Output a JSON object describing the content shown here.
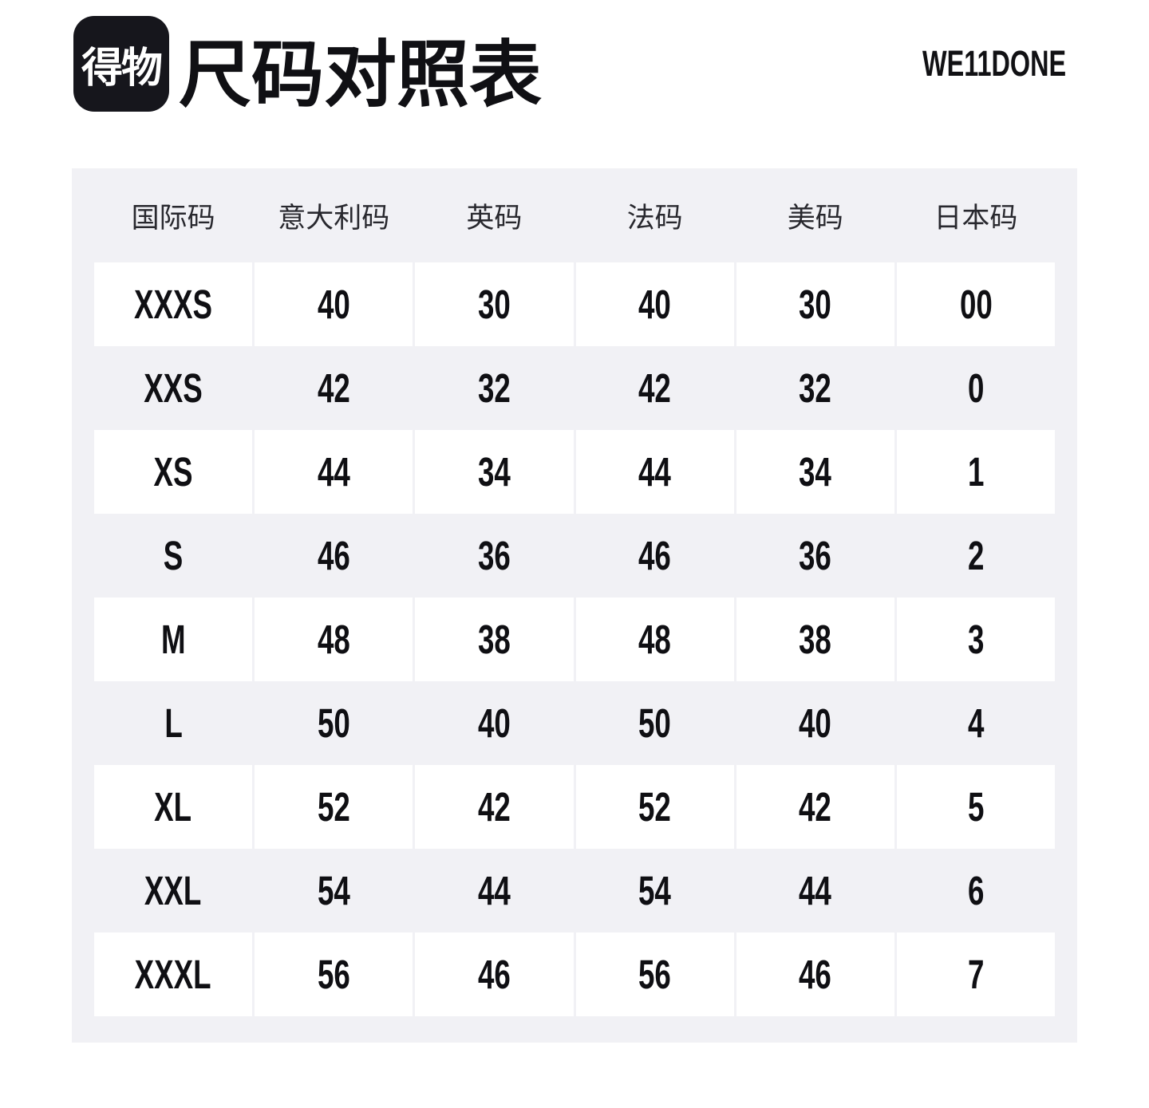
{
  "header": {
    "logo_text": "得物",
    "title": "尺码对照表",
    "brand": "WE11DONE"
  },
  "chart_data": {
    "type": "table",
    "title": "尺码对照表",
    "brand": "WE11DONE",
    "columns": [
      "国际码",
      "意大利码",
      "英码",
      "法码",
      "美码",
      "日本码"
    ],
    "rows": [
      [
        "XXXS",
        "40",
        "30",
        "40",
        "30",
        "00"
      ],
      [
        "XXS",
        "42",
        "32",
        "42",
        "32",
        "0"
      ],
      [
        "XS",
        "44",
        "34",
        "44",
        "34",
        "1"
      ],
      [
        "S",
        "46",
        "36",
        "46",
        "36",
        "2"
      ],
      [
        "M",
        "48",
        "38",
        "48",
        "38",
        "3"
      ],
      [
        "L",
        "50",
        "40",
        "50",
        "40",
        "4"
      ],
      [
        "XL",
        "52",
        "42",
        "52",
        "42",
        "5"
      ],
      [
        "XXL",
        "54",
        "44",
        "54",
        "44",
        "6"
      ],
      [
        "XXXL",
        "56",
        "46",
        "56",
        "46",
        "7"
      ]
    ]
  },
  "colors": {
    "panel_bg": "#f1f1f5",
    "cell_bg": "#ffffff",
    "value_text": "#0f0f13",
    "header_text": "#28282e",
    "logo_bg": "#16161c",
    "logo_text": "#ffffff"
  }
}
